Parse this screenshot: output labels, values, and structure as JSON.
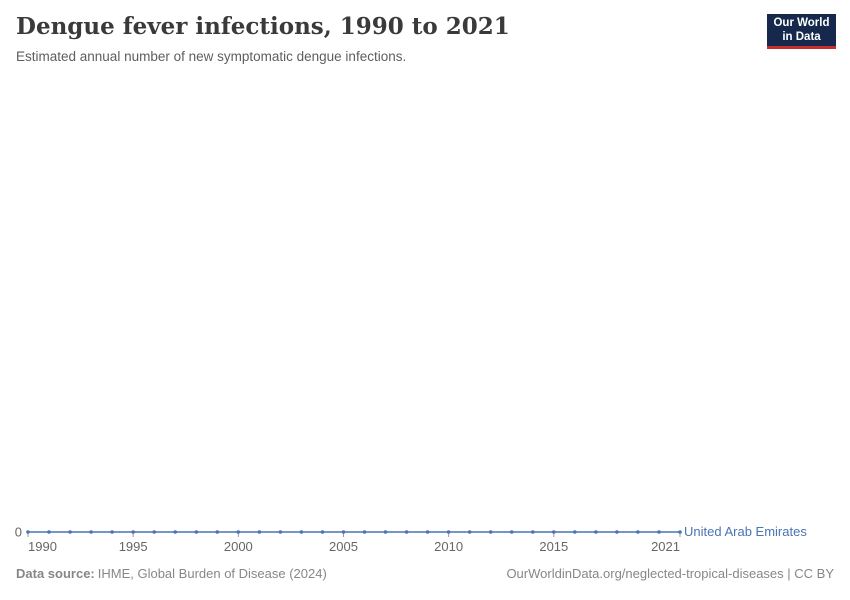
{
  "header": {
    "title": "Dengue fever infections, 1990 to 2021",
    "subtitle": "Estimated annual number of new symptomatic dengue infections."
  },
  "logo": {
    "line1": "Our World",
    "line2": "in Data",
    "bg_color": "#16294d",
    "accent_color": "#c62e2e"
  },
  "chart_data": {
    "type": "line",
    "title": "Dengue fever infections, 1990 to 2021",
    "x": [
      1990,
      1991,
      1992,
      1993,
      1994,
      1995,
      1996,
      1997,
      1998,
      1999,
      2000,
      2001,
      2002,
      2003,
      2004,
      2005,
      2006,
      2007,
      2008,
      2009,
      2010,
      2011,
      2012,
      2013,
      2014,
      2015,
      2016,
      2017,
      2018,
      2019,
      2020,
      2021
    ],
    "series": [
      {
        "name": "United Arab Emirates",
        "color": "#4a74b5",
        "values": [
          0,
          0,
          0,
          0,
          0,
          0,
          0,
          0,
          0,
          0,
          0,
          0,
          0,
          0,
          0,
          0,
          0,
          0,
          0,
          0,
          0,
          0,
          0,
          0,
          0,
          0,
          0,
          0,
          0,
          0,
          0,
          0
        ]
      }
    ],
    "xlabel": "",
    "ylabel": "",
    "xlim": [
      1990,
      2021
    ],
    "ylim": [
      0,
      1
    ],
    "x_ticks_labeled": [
      1990,
      1995,
      2000,
      2005,
      2010,
      2015,
      2021
    ],
    "y_ticks": [
      0
    ],
    "grid": false,
    "legend_position": "end-of-line",
    "tick_label_color": "#666666",
    "tick_color": "#999999"
  },
  "footer": {
    "source_label": "Data source:",
    "source_value": "IHME, Global Burden of Disease (2024)",
    "credit": "OurWorldinData.org/neglected-tropical-diseases | CC BY"
  }
}
